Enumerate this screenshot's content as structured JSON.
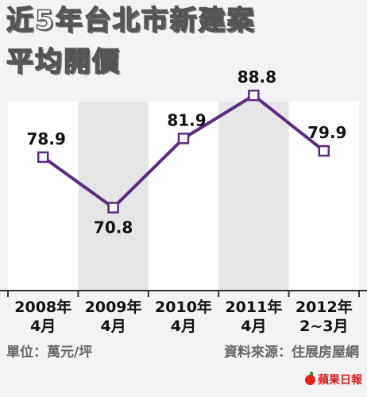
{
  "title": {
    "line1": "近5年台北市新建案",
    "line2": "平均開價"
  },
  "footer": {
    "unit": "單位：萬元/坪",
    "source": "資料來源：住展房屋網",
    "brand": "蘋果日報"
  },
  "colors": {
    "line": "#5c2a80",
    "column_light": "#ffffff",
    "column_dark": "#e6e6e6",
    "background": "#f3f3f3"
  },
  "chart_data": {
    "type": "line",
    "categories": [
      [
        "2008年",
        "4月"
      ],
      [
        "2009年",
        "4月"
      ],
      [
        "2010年",
        "4月"
      ],
      [
        "2011年",
        "4月"
      ],
      [
        "2012年",
        "2~3月"
      ]
    ],
    "values": [
      78.9,
      70.8,
      81.9,
      88.8,
      79.9
    ],
    "value_labels": [
      "78.9",
      "70.8",
      "81.9",
      "88.8",
      "79.9"
    ],
    "ylim": [
      57.5,
      92
    ],
    "marker": "hollow-square",
    "grid": false
  }
}
